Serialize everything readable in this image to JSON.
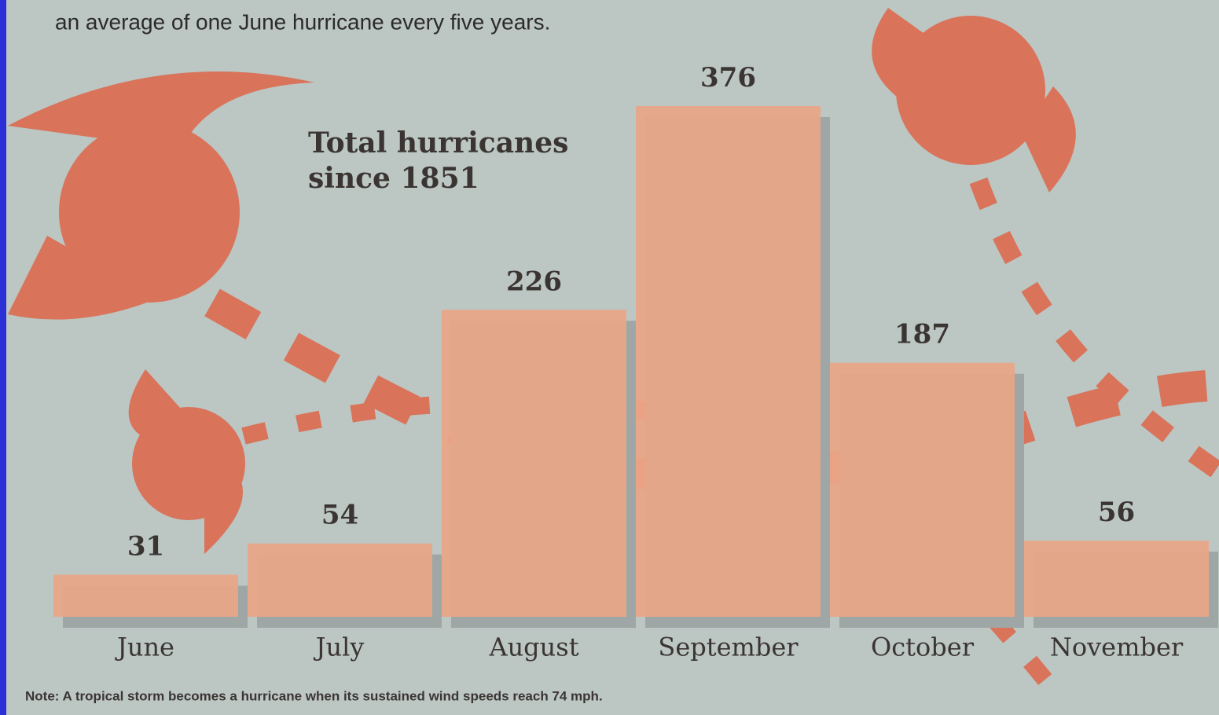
{
  "chart_data": {
    "type": "bar",
    "subtitle": "an average of one June hurricane every five years.",
    "title": [
      "Total hurricanes",
      "since 1851"
    ],
    "categories": [
      "June",
      "July",
      "August",
      "September",
      "October",
      "November"
    ],
    "values": [
      31,
      54,
      226,
      376,
      187,
      56
    ],
    "color": "#eaa687",
    "note": "Note: A tropical storm becomes a hurricane when its sustained wind speeds reach 74 mph."
  }
}
